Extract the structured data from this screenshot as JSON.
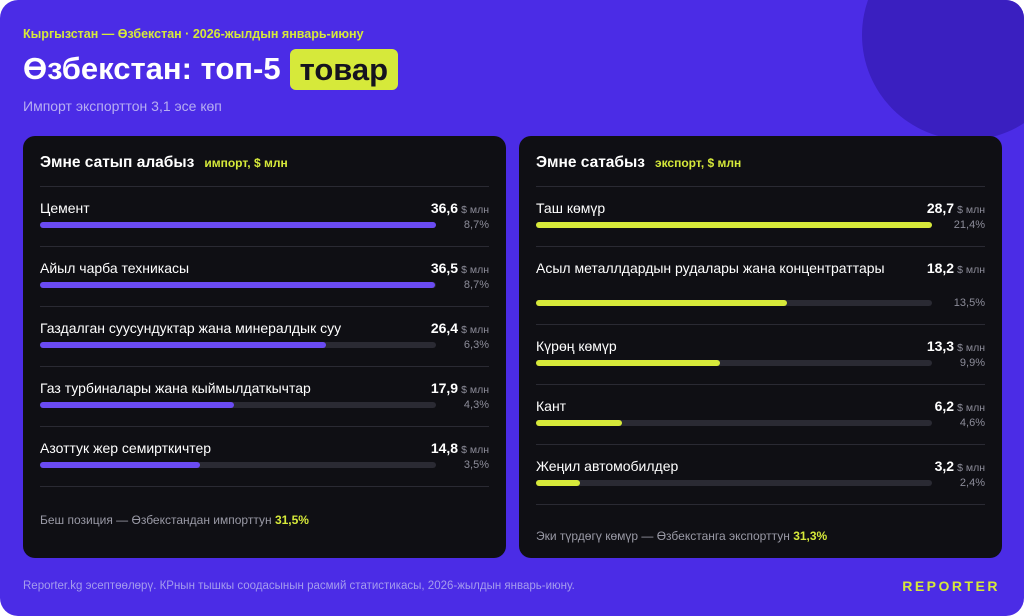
{
  "header": {
    "kicker": "Кыргызстан — Өзбекстан · 2026-жылдын январь-июну",
    "title_main": "Өзбекстан: топ-5",
    "title_highlight": "товар",
    "subtitle": "Импорт экспорттон 3,1 эсе көп"
  },
  "colors": {
    "background": "#4b2ce6",
    "panel": "#0f0f14",
    "accent_yellow": "#d6e93a",
    "import_bar": "#6a4bf2",
    "export_bar": "#d6e93a",
    "track": "#2a2a33"
  },
  "chart_data": [
    {
      "type": "bar",
      "title": "Эмне сатып алабыз",
      "unit_label": "импорт, $ млн",
      "value_unit": "$ млн",
      "categories": [
        "Цемент",
        "Айыл чарба техникасы",
        "Газдалган суусундуктар жана минералдык суу",
        "Газ турбиналары жана кыймылдаткычтар",
        "Азоттук жер семирткичтер"
      ],
      "values": [
        36.6,
        36.5,
        26.4,
        17.9,
        14.8
      ],
      "value_labels": [
        "36,6",
        "36,5",
        "26,4",
        "17,9",
        "14,8"
      ],
      "shares": [
        "8,7%",
        "8,7%",
        "6,3%",
        "4,3%",
        "3,5%"
      ],
      "xlim": [
        0,
        36.6
      ],
      "footnote_text": "Беш позиция — Өзбекстандан импорттун",
      "footnote_value": "31,5%"
    },
    {
      "type": "bar",
      "title": "Эмне сатабыз",
      "unit_label": "экспорт, $ млн",
      "value_unit": "$ млн",
      "categories": [
        "Таш көмүр",
        "Асыл металлдардын рудалары жана концентраттары",
        "Күрөң көмүр",
        "Кант",
        "Жеңил автомобилдер"
      ],
      "values": [
        28.7,
        18.2,
        13.3,
        6.2,
        3.2
      ],
      "value_labels": [
        "28,7",
        "18,2",
        "13,3",
        "6,2",
        "3,2"
      ],
      "shares": [
        "21,4%",
        "13,5%",
        "9,9%",
        "4,6%",
        "2,4%"
      ],
      "xlim": [
        0,
        28.7
      ],
      "footnote_text": "Эки түрдөгү көмүр — Өзбекстанга экспорттун",
      "footnote_value": "31,3%"
    }
  ],
  "footer": {
    "source": "Reporter.kg эсептөөлөрү. КРнын тышкы соодасынын расмий статистикасы, 2026-жылдын январь-июну.",
    "brand": "REPORTER"
  }
}
